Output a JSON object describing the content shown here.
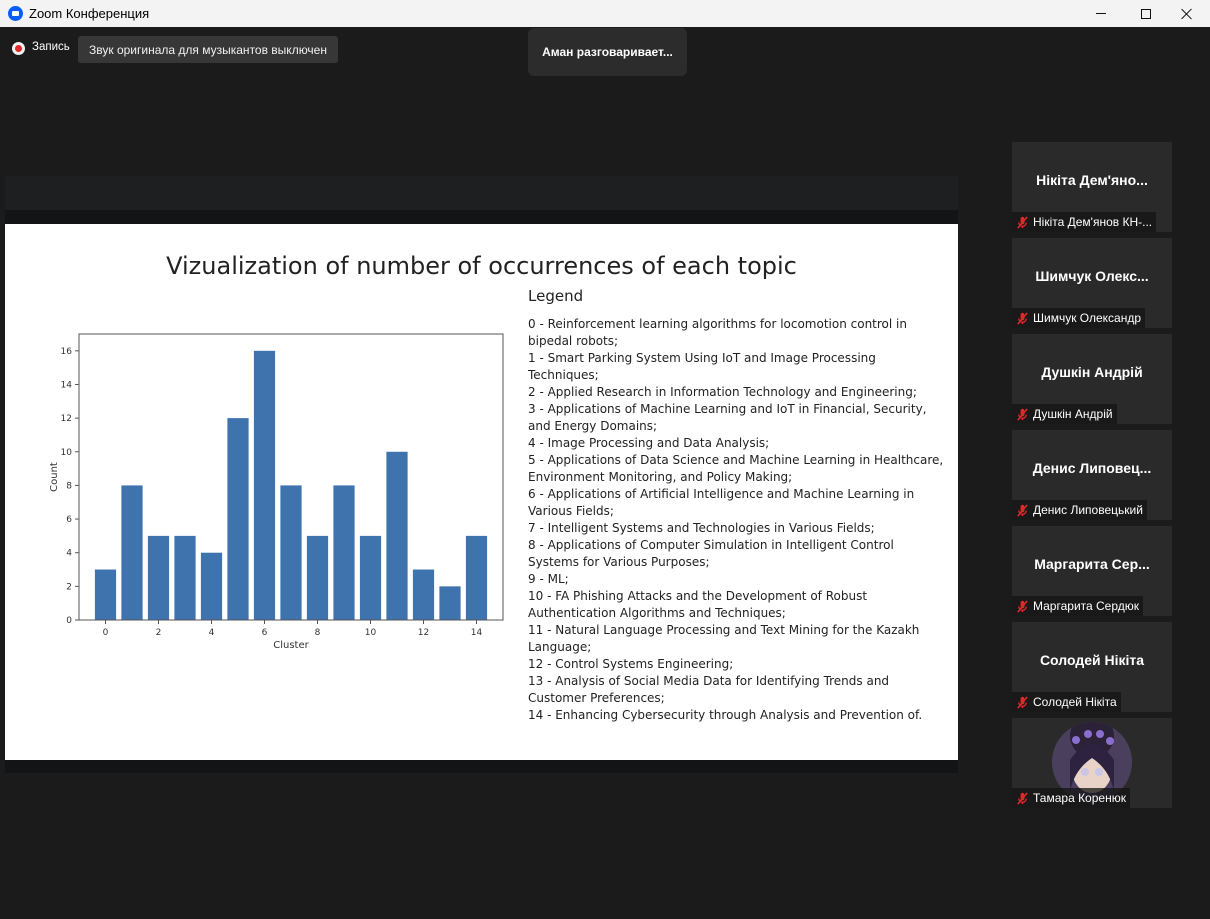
{
  "window": {
    "title": "Zoom Конференция",
    "minimize_glyph": "—",
    "maximize_glyph": "☐",
    "close_glyph": "✕"
  },
  "topbar": {
    "record_label": "Запись",
    "original_sound": "Звук оригинала для музыкантов выключен",
    "speaking_indicator": "Аман разговаривает..."
  },
  "slide": {
    "title": "Vizualization of number of occurrences of each topic",
    "legend_title": "Legend",
    "legend_items": [
      "0 - Reinforcement learning algorithms for locomotion control in bipedal robots;",
      "1 - Smart Parking System Using IoT and Image Processing Techniques;",
      "2 - Applied Research in Information Technology and Engineering;",
      "3 - Applications of Machine Learning and IoT in Financial, Security, and Energy Domains;",
      "4 - Image Processing and Data Analysis;",
      "5 - Applications of Data Science and Machine Learning in Healthcare, Environment Monitoring, and Policy Making;",
      "6 - Applications of Artificial Intelligence and Machine Learning in Various Fields;",
      "7 - Intelligent Systems and Technologies in Various Fields;",
      "8 - Applications of Computer Simulation in Intelligent Control Systems for Various Purposes;",
      "9 - ML;",
      "10 - FA Phishing Attacks and the Development of Robust Authentication Algorithms and Techniques;",
      "11 - Natural Language Processing and Text Mining for the Kazakh Language;",
      "12 - Control Systems Engineering;",
      "13 - Analysis of Social Media Data for Identifying Trends and Customer Preferences;",
      "14 - Enhancing Cybersecurity through Analysis and Prevention of."
    ]
  },
  "chart_data": {
    "type": "bar",
    "x": [
      0,
      1,
      2,
      3,
      4,
      5,
      6,
      7,
      8,
      9,
      10,
      11,
      12,
      13,
      14
    ],
    "values": [
      3,
      8,
      5,
      5,
      4,
      12,
      16,
      8,
      5,
      8,
      5,
      10,
      3,
      2,
      5
    ],
    "xlabel": "Cluster",
    "ylabel": "Count",
    "xticks": [
      "0",
      "2",
      "4",
      "6",
      "8",
      "10",
      "12",
      "14"
    ],
    "yticks": [
      "0",
      "2",
      "4",
      "6",
      "8",
      "10",
      "12",
      "14",
      "16"
    ],
    "ylim": [
      0,
      17
    ],
    "xlim": [
      -1,
      15
    ],
    "bar_color": "#3e73ad",
    "grid": false
  },
  "participants": [
    {
      "display": "Нікіта Дем'яно...",
      "label": "Нікіта Дем'янов КН-..."
    },
    {
      "display": "Шимчук Олекс...",
      "label": "Шимчук Олександр"
    },
    {
      "display": "Душкін Андрій",
      "label": "Душкін Андрій"
    },
    {
      "display": "Денис Липовец...",
      "label": "Денис Липовецький"
    },
    {
      "display": "Маргарита Сер...",
      "label": "Маргарита Сердюк"
    },
    {
      "display": "Солодей Нікіта",
      "label": "Солодей Нікіта"
    },
    {
      "display": "",
      "label": "Тамара Коренюк"
    }
  ],
  "colors": {
    "background": "#1b1b1b",
    "tile": "#2a2a2a",
    "mic_off": "#e02828",
    "zoom_blue": "#0b5cff"
  }
}
